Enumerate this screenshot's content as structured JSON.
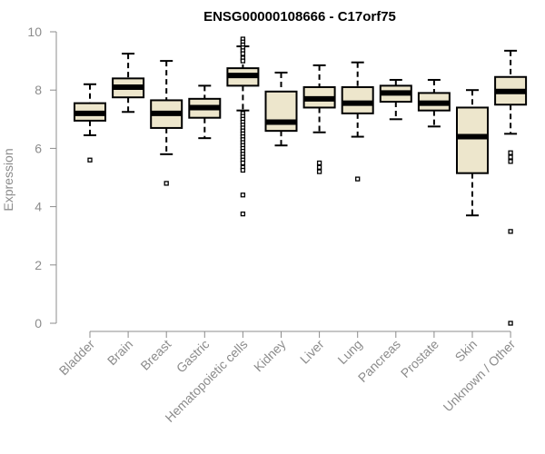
{
  "chart_data": {
    "type": "box",
    "title": "ENSG00000108666 - C17orf75",
    "xlabel": "",
    "ylabel": "Expression",
    "ylim": [
      0,
      10
    ],
    "yticks": [
      0,
      2,
      4,
      6,
      8,
      10
    ],
    "grid": false,
    "colors": {
      "box_fill": "#ede6cc",
      "stroke": "#000000",
      "axis": "#8c8c8c"
    },
    "categories": [
      "Bladder",
      "Brain",
      "Breast",
      "Gastric",
      "Hematopoietic cells",
      "Kidney",
      "Liver",
      "Lung",
      "Pancreas",
      "Prostate",
      "Skin",
      "Unknown / Other"
    ],
    "boxes": [
      {
        "category": "Bladder",
        "whisker_low": 6.45,
        "q1": 6.95,
        "median": 7.2,
        "q3": 7.55,
        "whisker_high": 8.2,
        "outliers": [
          5.6
        ]
      },
      {
        "category": "Brain",
        "whisker_low": 7.25,
        "q1": 7.75,
        "median": 8.1,
        "q3": 8.4,
        "whisker_high": 9.25,
        "outliers": []
      },
      {
        "category": "Breast",
        "whisker_low": 5.8,
        "q1": 6.7,
        "median": 7.2,
        "q3": 7.65,
        "whisker_high": 9.0,
        "outliers": [
          4.8
        ]
      },
      {
        "category": "Gastric",
        "whisker_low": 6.35,
        "q1": 7.05,
        "median": 7.4,
        "q3": 7.7,
        "whisker_high": 8.15,
        "outliers": []
      },
      {
        "category": "Hematopoietic cells",
        "whisker_low": 7.3,
        "q1": 8.15,
        "median": 8.5,
        "q3": 8.75,
        "whisker_high": 9.5,
        "outliers": [
          9.75,
          9.65,
          9.55,
          9.45,
          9.35,
          9.25,
          9.1,
          9.0,
          7.2,
          7.1,
          7.0,
          6.9,
          6.8,
          6.7,
          6.6,
          6.5,
          6.4,
          6.3,
          6.2,
          6.1,
          6.0,
          5.9,
          5.8,
          5.7,
          5.6,
          5.5,
          5.35,
          5.25,
          4.4,
          3.75
        ]
      },
      {
        "category": "Kidney",
        "whisker_low": 6.1,
        "q1": 6.6,
        "median": 6.9,
        "q3": 7.95,
        "whisker_high": 8.6,
        "outliers": []
      },
      {
        "category": "Liver",
        "whisker_low": 6.55,
        "q1": 7.4,
        "median": 7.7,
        "q3": 8.1,
        "whisker_high": 8.85,
        "outliers": [
          5.5,
          5.35,
          5.2
        ]
      },
      {
        "category": "Lung",
        "whisker_low": 6.4,
        "q1": 7.2,
        "median": 7.55,
        "q3": 8.1,
        "whisker_high": 8.95,
        "outliers": [
          4.95
        ]
      },
      {
        "category": "Pancreas",
        "whisker_low": 7.0,
        "q1": 7.6,
        "median": 7.9,
        "q3": 8.15,
        "whisker_high": 8.35,
        "outliers": []
      },
      {
        "category": "Prostate",
        "whisker_low": 6.75,
        "q1": 7.3,
        "median": 7.55,
        "q3": 7.9,
        "whisker_high": 8.35,
        "outliers": []
      },
      {
        "category": "Skin",
        "whisker_low": 3.7,
        "q1": 5.15,
        "median": 6.4,
        "q3": 7.4,
        "whisker_high": 8.0,
        "outliers": []
      },
      {
        "category": "Unknown / Other",
        "whisker_low": 6.5,
        "q1": 7.5,
        "median": 7.95,
        "q3": 8.45,
        "whisker_high": 9.35,
        "outliers": [
          5.85,
          5.7,
          5.55,
          3.15,
          0.0
        ]
      }
    ]
  }
}
